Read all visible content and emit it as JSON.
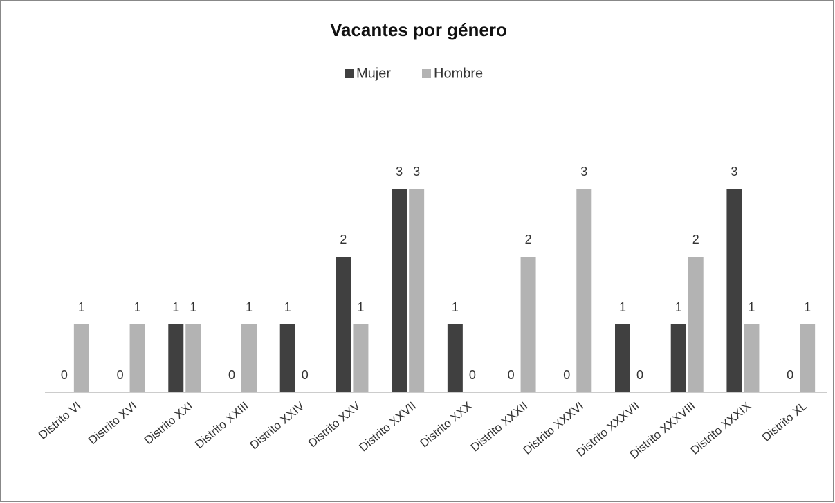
{
  "chart_data": {
    "type": "bar",
    "title": "Vacantes por género",
    "categories": [
      "Distrito VI",
      "Distrito XVI",
      "Distrito XXI",
      "Distrito XXIII",
      "Distrito XXIV",
      "Distrito XXV",
      "Distrito XXVII",
      "Distrito XXX",
      "Distrito XXXII",
      "Distrito XXXVI",
      "Distrito XXXVII",
      "Distrito XXXVIII",
      "Distrito XXXIX",
      "Distrito XL"
    ],
    "series": [
      {
        "name": "Mujer",
        "color": "#404040",
        "values": [
          0,
          0,
          1,
          0,
          1,
          2,
          3,
          1,
          0,
          0,
          1,
          1,
          3,
          0
        ]
      },
      {
        "name": "Hombre",
        "color": "#b3b3b3",
        "values": [
          1,
          1,
          1,
          1,
          0,
          1,
          3,
          0,
          2,
          3,
          0,
          2,
          1,
          1
        ]
      }
    ],
    "legend": "top"
  }
}
